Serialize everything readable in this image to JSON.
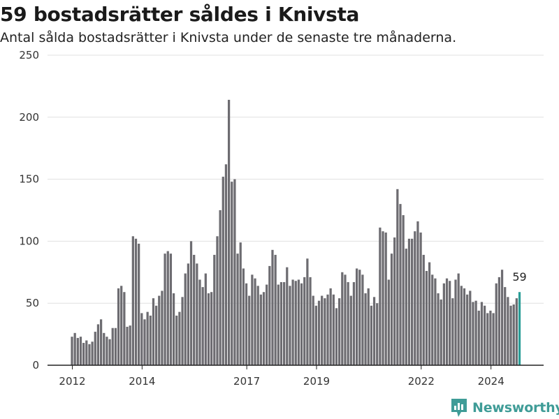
{
  "title": "59 bostadsrätter såldes i Knivsta",
  "subtitle": "Antal sålda bostadsrätter i Knivsta under de senaste tre månaderna.",
  "brand": {
    "name": "Newsworthy",
    "color": "#3f9c97",
    "icon": "newsworthy-bar-chart-icon"
  },
  "colors": {
    "bar": "#6d6c71",
    "highlight": "#2a9d96",
    "grid": "#e0e0e0",
    "axis": "#222222"
  },
  "chart_data": {
    "type": "bar",
    "title": "59 bostadsrätter såldes i Knivsta",
    "xlabel": "",
    "ylabel": "",
    "ylim": [
      0,
      250
    ],
    "yticks": [
      0,
      50,
      100,
      150,
      200,
      250
    ],
    "xticks": [
      {
        "label": "2012",
        "x": 2012.0
      },
      {
        "label": "2014",
        "x": 2014.0
      },
      {
        "label": "2017",
        "x": 2017.0
      },
      {
        "label": "2019",
        "x": 2019.0
      },
      {
        "label": "2022",
        "x": 2022.0
      },
      {
        "label": "2024",
        "x": 2024.0
      }
    ],
    "grid": true,
    "x_start": 2011.99,
    "step": 0.0833,
    "highlight_last": true,
    "last_label": "59",
    "values": [
      23,
      26,
      22,
      23,
      18,
      20,
      17,
      19,
      27,
      33,
      37,
      26,
      23,
      21,
      30,
      30,
      62,
      64,
      59,
      31,
      32,
      104,
      102,
      98,
      42,
      37,
      43,
      40,
      54,
      48,
      56,
      60,
      90,
      92,
      90,
      58,
      40,
      43,
      55,
      74,
      82,
      100,
      89,
      82,
      69,
      63,
      74,
      58,
      59,
      89,
      104,
      125,
      152,
      162,
      214,
      148,
      150,
      90,
      99,
      78,
      66,
      56,
      73,
      70,
      64,
      57,
      59,
      65,
      80,
      93,
      89,
      65,
      67,
      67,
      79,
      64,
      69,
      68,
      69,
      66,
      71,
      86,
      71,
      56,
      48,
      52,
      56,
      54,
      57,
      62,
      57,
      46,
      54,
      75,
      73,
      67,
      56,
      67,
      78,
      77,
      73,
      58,
      62,
      48,
      55,
      50,
      111,
      108,
      107,
      69,
      90,
      103,
      142,
      130,
      121,
      94,
      102,
      102,
      108,
      116,
      107,
      89,
      76,
      83,
      73,
      70,
      58,
      53,
      66,
      70,
      68,
      54,
      69,
      74,
      64,
      62,
      57,
      60,
      51,
      52,
      44,
      51,
      48,
      42,
      44,
      42,
      66,
      71,
      77,
      63,
      55,
      48,
      49,
      54,
      59
    ]
  }
}
